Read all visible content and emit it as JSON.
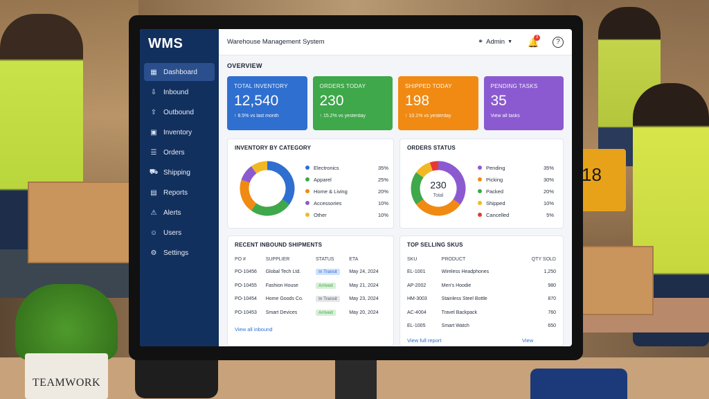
{
  "app": {
    "logo": "WMS",
    "window_title": "Warehouse Management System",
    "user": "Admin",
    "notifications": "3"
  },
  "sidebar": {
    "items": [
      {
        "label": "Dashboard",
        "icon": "dashboard-icon"
      },
      {
        "label": "Inbound",
        "icon": "inbound-icon"
      },
      {
        "label": "Outbound",
        "icon": "outbound-icon"
      },
      {
        "label": "Inventory",
        "icon": "inventory-icon"
      },
      {
        "label": "Orders",
        "icon": "orders-icon"
      },
      {
        "label": "Shipping",
        "icon": "shipping-icon"
      },
      {
        "label": "Reports",
        "icon": "reports-icon"
      },
      {
        "label": "Alerts",
        "icon": "alerts-icon"
      },
      {
        "label": "Users",
        "icon": "users-icon"
      },
      {
        "label": "Settings",
        "icon": "settings-icon"
      }
    ]
  },
  "overview": {
    "label": "OVERVIEW",
    "kpis": [
      {
        "label": "TOTAL INVENTORY",
        "value": "12,540",
        "sub": "↑ 8.5% vs last month",
        "color": "#2f6fd0"
      },
      {
        "label": "ORDERS TODAY",
        "value": "230",
        "sub": "↑ 15.2% vs yesterday",
        "color": "#3ea84a"
      },
      {
        "label": "SHIPPED TODAY",
        "value": "198",
        "sub": "↑ 10.1% vs yesterday",
        "color": "#f08a12"
      },
      {
        "label": "PENDING TASKS",
        "value": "35",
        "sub": "View all tasks",
        "color": "#8c5ad0"
      }
    ]
  },
  "inventory_by_category": {
    "title": "INVENTORY BY CATEGORY",
    "items": [
      {
        "label": "Electronics",
        "pct": "35%",
        "value": 35,
        "color": "#2f6fd0"
      },
      {
        "label": "Apparel",
        "pct": "25%",
        "value": 25,
        "color": "#3ea84a"
      },
      {
        "label": "Home & Living",
        "pct": "20%",
        "value": 20,
        "color": "#f08a12"
      },
      {
        "label": "Accessories",
        "pct": "10%",
        "value": 10,
        "color": "#8c5ad0"
      },
      {
        "label": "Other",
        "pct": "10%",
        "value": 10,
        "color": "#f2b824"
      }
    ]
  },
  "orders_status": {
    "title": "ORDERS STATUS",
    "center_value": "230",
    "center_label": "Total",
    "items": [
      {
        "label": "Pending",
        "pct": "35%",
        "value": 35,
        "color": "#8c5ad0"
      },
      {
        "label": "Picking",
        "pct": "30%",
        "value": 30,
        "color": "#f08a12"
      },
      {
        "label": "Packed",
        "pct": "20%",
        "value": 20,
        "color": "#3ea84a"
      },
      {
        "label": "Shipped",
        "pct": "10%",
        "value": 10,
        "color": "#f2b824"
      },
      {
        "label": "Cancelled",
        "pct": "5%",
        "value": 5,
        "color": "#e53935"
      }
    ]
  },
  "recent_inbound": {
    "title": "RECENT INBOUND SHIPMENTS",
    "headers": [
      "PO #",
      "SUPPLIER",
      "STATUS",
      "ETA"
    ],
    "rows": [
      {
        "po": "PO-10456",
        "supplier": "Global Tech Ltd.",
        "status": "In Transit",
        "status_color": "#cfe1fb",
        "status_text": "#2f6fd0",
        "eta": "May 24, 2024"
      },
      {
        "po": "PO-10455",
        "supplier": "Fashion House",
        "status": "Arrived",
        "status_color": "#d7f0d6",
        "status_text": "#3ea84a",
        "eta": "May 21, 2024"
      },
      {
        "po": "PO-10454",
        "supplier": "Home Goods Co.",
        "status": "In Transit",
        "status_color": "#e5e7eb",
        "status_text": "#555b66",
        "eta": "May 23, 2024"
      },
      {
        "po": "PO-10453",
        "supplier": "Smart Devices",
        "status": "Arrived",
        "status_color": "#d7f0d6",
        "status_text": "#3ea84a",
        "eta": "May 20, 2024"
      }
    ],
    "link": "View all inbound"
  },
  "top_selling": {
    "title": "TOP SELLING SKUS",
    "headers": [
      "SKU",
      "PRODUCT",
      "QTY SOLD"
    ],
    "rows": [
      {
        "sku": "EL-1001",
        "product": "Wireless Headphones",
        "qty": "1,250"
      },
      {
        "sku": "AP-2002",
        "product": "Men's Hoodie",
        "qty": "980"
      },
      {
        "sku": "HM-3003",
        "product": "Stainless Steel Bottle",
        "qty": "870"
      },
      {
        "sku": "AC-4004",
        "product": "Travel Backpack",
        "qty": "760"
      },
      {
        "sku": "EL-1005",
        "product": "Smart Watch",
        "qty": "650"
      }
    ],
    "link": "View full report",
    "link2": "View"
  },
  "scene": {
    "pot_text": "TEAMWORK",
    "forklift_number": "18"
  }
}
